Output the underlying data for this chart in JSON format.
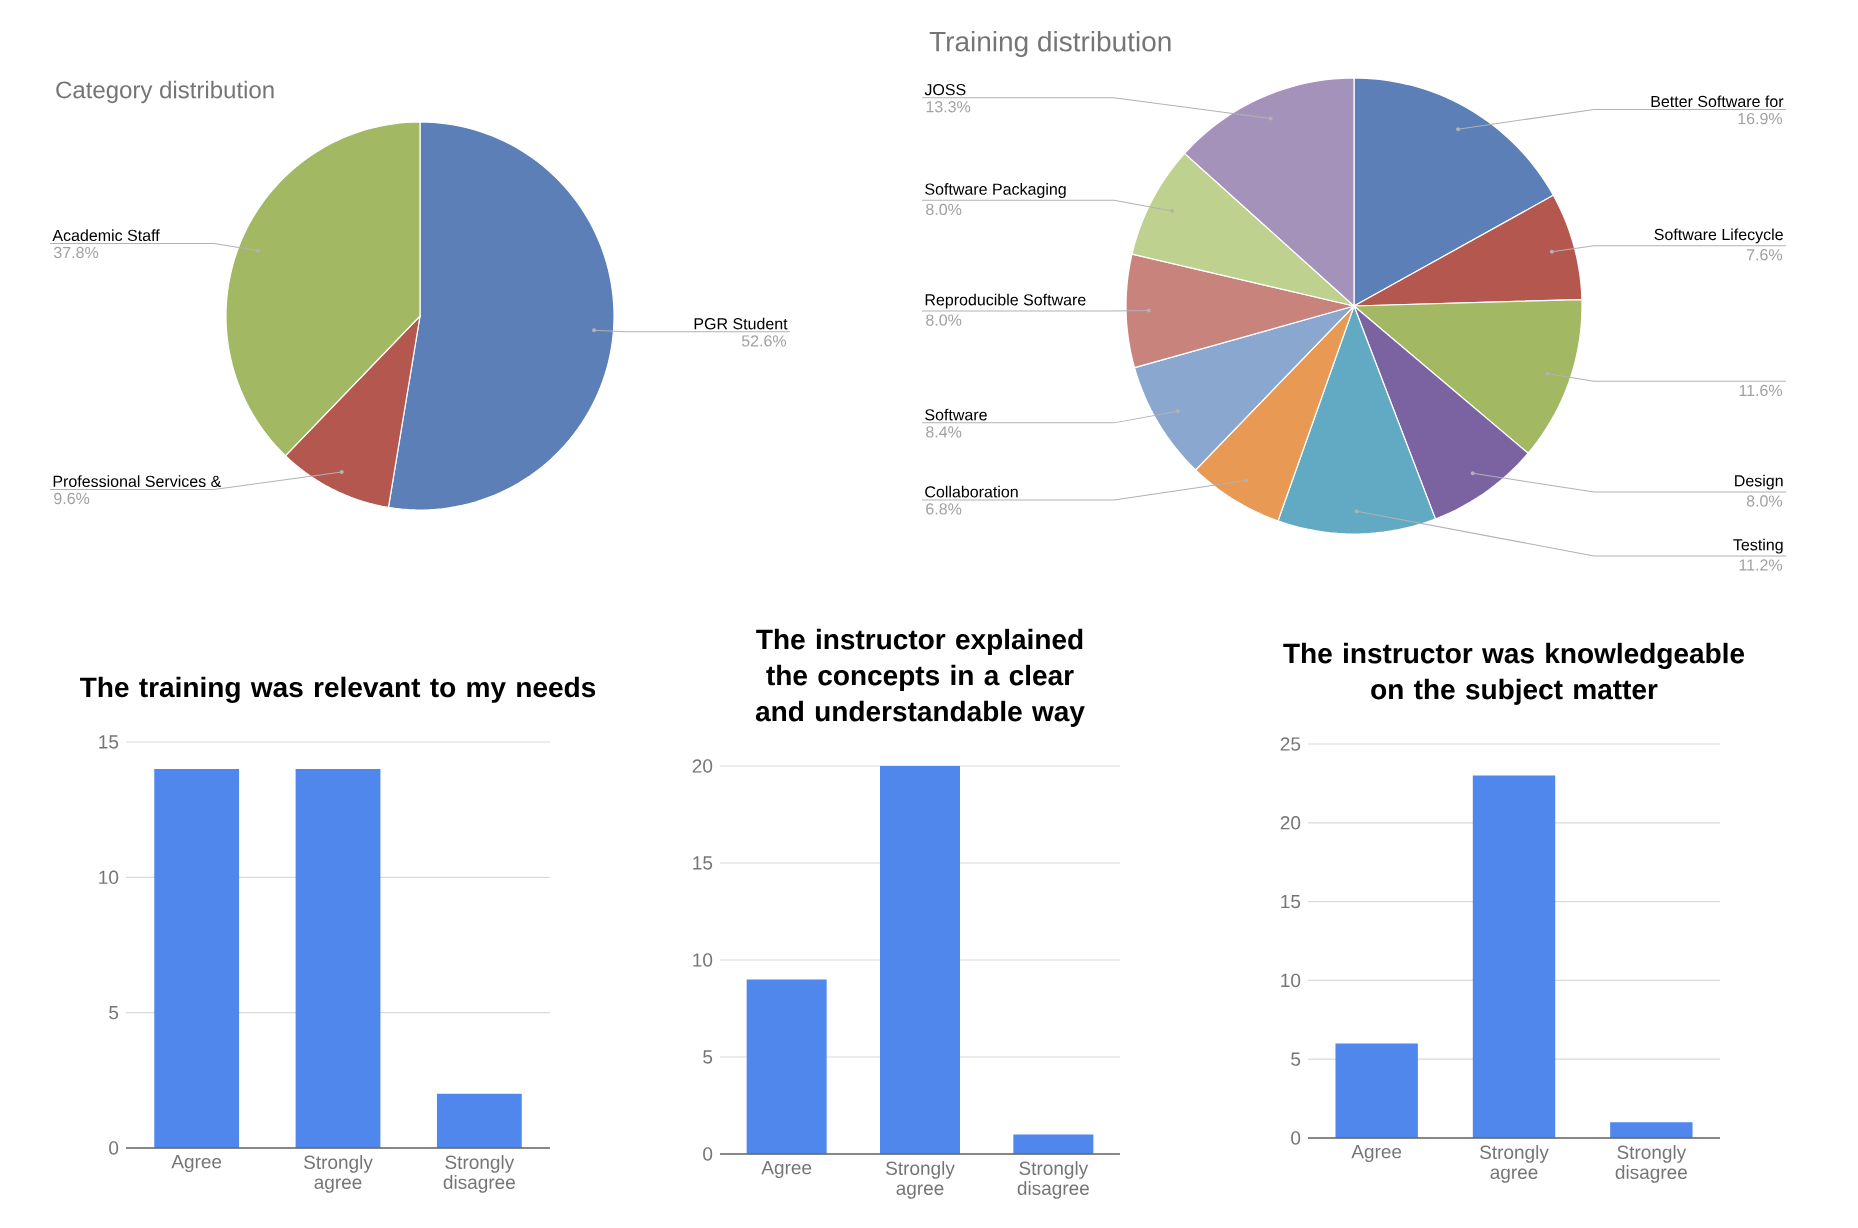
{
  "chart_data": [
    {
      "type": "pie",
      "title": "Category distribution",
      "categories": [
        "PGR Student",
        "Professional Services &",
        "Academic Staff"
      ],
      "values": [
        52.6,
        9.6,
        37.8
      ],
      "colors": [
        "#5b7fb6",
        "#b4574f",
        "#a2b862"
      ],
      "value_labels": [
        "52.6%",
        "9.6%",
        "37.8%"
      ]
    },
    {
      "type": "pie",
      "title": "Training distribution",
      "categories": [
        "Better Software for",
        "Software Lifecycle",
        null,
        "Design",
        "Testing",
        "Collaboration",
        "Software",
        "Reproducible Software",
        "Software Packaging",
        "JOSS"
      ],
      "values": [
        16.9,
        7.6,
        11.6,
        8.0,
        11.2,
        6.8,
        8.4,
        8.0,
        8.0,
        13.3
      ],
      "colors": [
        "#5b7fb6",
        "#b4574f",
        "#a2b862",
        "#7b62a0",
        "#62a9c3",
        "#e89a54",
        "#8aa7d0",
        "#c9837d",
        "#bfd18f",
        "#a492bb"
      ],
      "value_labels": [
        "16.9%",
        "7.6%",
        "11.6%",
        "8.0%",
        "11.2%",
        "6.8%",
        "8.4%",
        "8.0%",
        "8.0%",
        "13.3%"
      ]
    },
    {
      "type": "bar",
      "title": "The training was relevant to my needs",
      "categories": [
        "Agree",
        "Strongly agree",
        "Strongly disagree"
      ],
      "values": [
        14,
        14,
        2
      ],
      "color": "#4f87ec",
      "ylim": [
        0,
        15
      ],
      "yticks": [
        0,
        5,
        10,
        15
      ],
      "grid": "y"
    },
    {
      "type": "bar",
      "title": "The instructor explained the concepts in a clear and understandable way",
      "categories": [
        "Agree",
        "Strongly agree",
        "Strongly disagree"
      ],
      "values": [
        9,
        20,
        1
      ],
      "color": "#4f87ec",
      "ylim": [
        0,
        20
      ],
      "yticks": [
        0,
        5,
        10,
        15,
        20
      ],
      "grid": "y"
    },
    {
      "type": "bar",
      "title": "The instructor was knowledgeable on the subject matter",
      "categories": [
        "Agree",
        "Strongly agree",
        "Strongly disagree"
      ],
      "values": [
        6,
        23,
        1
      ],
      "color": "#4f87ec",
      "ylim": [
        0,
        25
      ],
      "yticks": [
        0,
        5,
        10,
        15,
        20,
        25
      ],
      "grid": "y"
    }
  ]
}
